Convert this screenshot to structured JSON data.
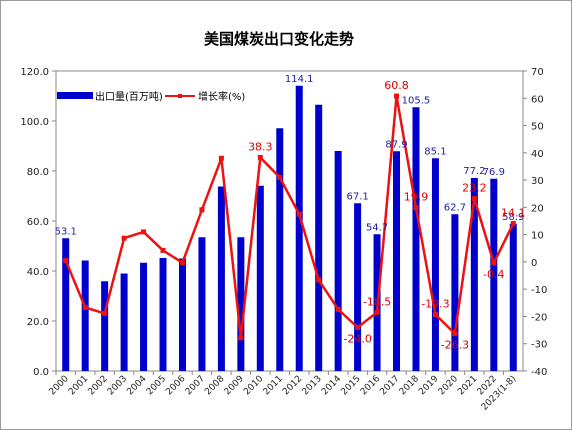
{
  "chart_data": {
    "type": "bar+line",
    "title": "美国煤炭出口变化走势",
    "categories": [
      "2000",
      "2001",
      "2002",
      "2003",
      "2004",
      "2005",
      "2006",
      "2007",
      "2008",
      "2009",
      "2010",
      "2011",
      "2012",
      "2013",
      "2014",
      "2015",
      "2016",
      "2017",
      "2018",
      "2019",
      "2020",
      "2021",
      "2022",
      "2023(1-8)"
    ],
    "series": [
      {
        "name": "出口量(百万吨)",
        "type": "bar",
        "axis": "left",
        "color": "#0000cc",
        "values": [
          53.1,
          44.2,
          35.9,
          39.0,
          43.3,
          45.2,
          45.0,
          53.5,
          73.8,
          53.5,
          74.1,
          97.1,
          114.1,
          106.5,
          88.0,
          67.1,
          54.7,
          87.9,
          105.5,
          85.1,
          62.7,
          77.2,
          76.9,
          58.9
        ],
        "labels": {
          "0": "53.1",
          "12": "114.1",
          "15": "67.1",
          "16": "54.7",
          "17": "87.9",
          "18": "105.5",
          "19": "85.1",
          "20": "62.7",
          "21": "77.2",
          "22": "76.9",
          "23": "58.9"
        }
      },
      {
        "name": "增长率(%)",
        "type": "line",
        "axis": "right",
        "color": "#ee1111",
        "values": [
          0.5,
          -16.7,
          -18.9,
          8.7,
          11.0,
          4.2,
          -0.3,
          19.1,
          38.0,
          -27.8,
          38.3,
          31.0,
          17.5,
          -6.6,
          -17.4,
          -24.0,
          -18.5,
          60.8,
          19.9,
          -19.3,
          -26.3,
          23.2,
          -0.4,
          14.1
        ],
        "labels": {
          "10": "38.3",
          "15": "-24.0",
          "16": "-18.5",
          "17": "60.8",
          "18": "19.9",
          "19": "-19.3",
          "20": "-26.3",
          "21": "23.2",
          "22": "-0.4",
          "23": "14.1"
        }
      }
    ],
    "y_left": {
      "range": [
        0,
        120
      ],
      "ticks": [
        "0.0",
        "20.0",
        "40.0",
        "60.0",
        "80.0",
        "100.0",
        "120.0"
      ]
    },
    "y_right": {
      "range": [
        -40,
        70
      ],
      "ticks": [
        "-40",
        "-30",
        "-20",
        "-10",
        "0",
        "10",
        "20",
        "30",
        "40",
        "50",
        "60",
        "70"
      ]
    },
    "legend": {
      "position": "top-left",
      "items": [
        "出口量(百万吨)",
        "增长率(%)"
      ]
    },
    "grid": false
  }
}
